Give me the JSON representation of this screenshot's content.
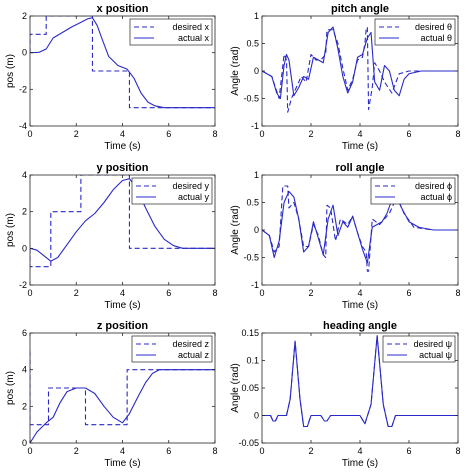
{
  "line_color": "#2929c8",
  "chart_data": [
    {
      "type": "line",
      "title": "x position",
      "xlabel": "Time (s)",
      "ylabel": "pos (m)",
      "xlim": [
        0,
        8
      ],
      "ylim": [
        -4,
        2
      ],
      "xticks": [
        0,
        2,
        4,
        6,
        8
      ],
      "xtick_labels": [
        "0",
        "2",
        "4",
        "6",
        "8"
      ],
      "yticks": [
        -4,
        -2,
        0,
        2
      ],
      "ytick_labels": [
        "-4",
        "-2",
        "0",
        "2"
      ],
      "legend": "top-right",
      "series": [
        {
          "name": "desired x",
          "style": "dashed",
          "x": [
            0,
            0,
            0.7,
            0.7,
            2.7,
            2.7,
            4.3,
            4.3,
            8
          ],
          "y": [
            0,
            1,
            1,
            2,
            2,
            -1,
            -1,
            -3,
            -3
          ]
        },
        {
          "name": "actual x",
          "style": "solid",
          "x": [
            0,
            0.4,
            0.7,
            1.0,
            1.4,
            1.8,
            2.2,
            2.5,
            2.7,
            2.9,
            3.1,
            3.4,
            3.8,
            4.2,
            4.5,
            4.8,
            5.1,
            5.4,
            5.8,
            6.2,
            7,
            8
          ],
          "y": [
            0,
            0.02,
            0.2,
            0.8,
            1.1,
            1.4,
            1.65,
            1.85,
            1.9,
            1.5,
            0.8,
            -0.2,
            -0.7,
            -0.9,
            -1.4,
            -2.2,
            -2.7,
            -2.9,
            -3.0,
            -3.0,
            -3.0,
            -3.0
          ]
        }
      ]
    },
    {
      "type": "line",
      "title": "pitch angle",
      "xlabel": "Time (s)",
      "ylabel": "Angle (rad)",
      "xlim": [
        0,
        8
      ],
      "ylim": [
        -1,
        1
      ],
      "xticks": [
        0,
        2,
        4,
        6,
        8
      ],
      "xtick_labels": [
        "0",
        "2",
        "4",
        "6",
        "8"
      ],
      "yticks": [
        -1,
        -0.5,
        0,
        0.5,
        1
      ],
      "ytick_labels": [
        "-1",
        "-0.5",
        "0",
        "0.5",
        "1"
      ],
      "legend": "top-right",
      "series": [
        {
          "name": "desired θ",
          "style": "dashed",
          "x": [
            0,
            0.4,
            0.55,
            0.7,
            0.75,
            0.9,
            1.0,
            1.05,
            1.2,
            1.4,
            1.6,
            1.8,
            2.0,
            2.2,
            2.4,
            2.6,
            2.65,
            2.7,
            2.9,
            3.1,
            3.3,
            3.5,
            3.7,
            3.9,
            4.1,
            4.2,
            4.25,
            4.3,
            4.35,
            4.5,
            4.6,
            4.8,
            5.0,
            5.3,
            5.6,
            6.0,
            7,
            8
          ],
          "y": [
            0,
            -0.1,
            -0.3,
            -0.5,
            -0.3,
            0.3,
            0.2,
            -0.75,
            -0.5,
            -0.3,
            -0.1,
            -0.2,
            0.3,
            0.2,
            0.2,
            0.3,
            0.75,
            0.75,
            0.75,
            0.5,
            0.05,
            -0.35,
            -0.15,
            0.2,
            0.25,
            0.5,
            0.75,
            0.8,
            -0.7,
            -0.3,
            0.15,
            0.0,
            -0.2,
            -0.4,
            -0.05,
            0.0,
            0.0,
            0.0
          ]
        },
        {
          "name": "actual θ",
          "style": "solid",
          "x": [
            0,
            0.4,
            0.6,
            0.75,
            0.9,
            1.0,
            1.1,
            1.3,
            1.5,
            1.7,
            1.9,
            2.1,
            2.3,
            2.5,
            2.7,
            2.9,
            3.1,
            3.3,
            3.5,
            3.7,
            3.9,
            4.1,
            4.3,
            4.45,
            4.6,
            4.8,
            5.0,
            5.2,
            5.4,
            5.6,
            5.8,
            6.0,
            6.5,
            7,
            8
          ],
          "y": [
            0,
            -0.1,
            -0.4,
            -0.5,
            0.1,
            0.3,
            0.2,
            -0.45,
            -0.3,
            -0.1,
            -0.15,
            0.25,
            0.2,
            0.15,
            0.7,
            0.8,
            0.4,
            -0.1,
            -0.4,
            -0.2,
            0.25,
            0.3,
            0.6,
            0.7,
            -0.2,
            -0.35,
            0.1,
            0.0,
            -0.35,
            -0.45,
            -0.15,
            -0.05,
            0.0,
            0.0,
            0.0
          ]
        }
      ]
    },
    {
      "type": "line",
      "title": "y position",
      "xlabel": "Time (s)",
      "ylabel": "pos (m)",
      "xlim": [
        0,
        8
      ],
      "ylim": [
        -2,
        4
      ],
      "xticks": [
        0,
        2,
        4,
        6,
        8
      ],
      "xtick_labels": [
        "0",
        "2",
        "4",
        "6",
        "8"
      ],
      "yticks": [
        -2,
        0,
        2,
        4
      ],
      "ytick_labels": [
        "-2",
        "0",
        "2",
        "4"
      ],
      "legend": "top-right",
      "series": [
        {
          "name": "desired y",
          "style": "dashed",
          "x": [
            0,
            0,
            0.9,
            0.9,
            2.2,
            2.2,
            4.3,
            4.3,
            8
          ],
          "y": [
            0,
            -1,
            -1,
            2,
            2,
            4,
            4,
            0,
            0
          ]
        },
        {
          "name": "actual y",
          "style": "solid",
          "x": [
            0,
            0.3,
            0.6,
            0.9,
            1.2,
            1.6,
            2.0,
            2.4,
            2.8,
            3.2,
            3.6,
            4.0,
            4.3,
            4.6,
            5.0,
            5.4,
            5.8,
            6.2,
            6.6,
            7,
            8
          ],
          "y": [
            0,
            -0.1,
            -0.4,
            -0.7,
            -0.5,
            0.2,
            0.9,
            1.5,
            1.9,
            2.5,
            3.2,
            3.7,
            3.8,
            3.3,
            2.2,
            1.2,
            0.5,
            0.15,
            0.0,
            0.0,
            0.0
          ]
        }
      ]
    },
    {
      "type": "line",
      "title": "roll angle",
      "xlabel": "Time (s)",
      "ylabel": "Angle (rad)",
      "xlim": [
        0,
        8
      ],
      "ylim": [
        -1,
        1
      ],
      "xticks": [
        0,
        2,
        4,
        6,
        8
      ],
      "xtick_labels": [
        "0",
        "2",
        "4",
        "6",
        "8"
      ],
      "yticks": [
        -1,
        -0.5,
        0,
        0.5,
        1
      ],
      "ytick_labels": [
        "-1",
        "-0.5",
        "0",
        "0.5",
        "1"
      ],
      "legend": "top-right",
      "series": [
        {
          "name": "desired ϕ",
          "style": "dashed",
          "x": [
            0,
            0.3,
            0.5,
            0.7,
            0.85,
            0.9,
            1.05,
            1.1,
            1.3,
            1.5,
            1.7,
            1.9,
            2.1,
            2.3,
            2.5,
            2.6,
            2.65,
            2.8,
            3.0,
            3.2,
            3.5,
            3.7,
            3.9,
            4.1,
            4.25,
            4.3,
            4.35,
            4.5,
            4.8,
            5.2,
            5.5,
            5.8,
            6.2,
            7,
            8
          ],
          "y": [
            0,
            -0.1,
            -0.4,
            -0.3,
            0.8,
            0.8,
            0.8,
            0.4,
            0.5,
            0.2,
            -0.3,
            -0.3,
            0.1,
            -0.1,
            -0.45,
            -0.5,
            0.45,
            0.4,
            -0.2,
            0.2,
            0.1,
            0.25,
            -0.05,
            -0.3,
            -0.4,
            -0.75,
            -0.75,
            0.2,
            0.1,
            0.3,
            0.6,
            0.3,
            0.05,
            0.0,
            0.0
          ]
        },
        {
          "name": "actual ϕ",
          "style": "solid",
          "x": [
            0,
            0.3,
            0.5,
            0.7,
            0.9,
            1.1,
            1.3,
            1.5,
            1.7,
            1.9,
            2.1,
            2.3,
            2.5,
            2.7,
            2.9,
            3.1,
            3.3,
            3.5,
            3.7,
            3.9,
            4.1,
            4.3,
            4.5,
            4.7,
            4.9,
            5.1,
            5.3,
            5.5,
            5.7,
            6.0,
            6.4,
            7,
            8
          ],
          "y": [
            0,
            -0.1,
            -0.5,
            -0.2,
            0.5,
            0.7,
            0.6,
            0.2,
            -0.4,
            -0.3,
            0.15,
            -0.15,
            -0.45,
            0.2,
            0.45,
            -0.1,
            0.15,
            0.05,
            0.25,
            -0.05,
            -0.35,
            -0.6,
            0.05,
            0.1,
            0.15,
            0.3,
            0.55,
            0.6,
            0.4,
            0.15,
            0.05,
            0.0,
            0.0
          ]
        }
      ]
    },
    {
      "type": "line",
      "title": "z position",
      "xlabel": "Time (s)",
      "ylabel": "pos (m)",
      "xlim": [
        0,
        8
      ],
      "ylim": [
        0,
        6
      ],
      "xticks": [
        0,
        2,
        4,
        6,
        8
      ],
      "xtick_labels": [
        "0",
        "2",
        "4",
        "6",
        "8"
      ],
      "yticks": [
        0,
        2,
        4,
        6
      ],
      "ytick_labels": [
        "0",
        "2",
        "4",
        "6"
      ],
      "legend": "top-right",
      "series": [
        {
          "name": "desired z",
          "style": "dashed",
          "x": [
            0,
            0,
            0.8,
            0.8,
            2.4,
            2.4,
            4.2,
            4.2,
            8
          ],
          "y": [
            5,
            1,
            1,
            3,
            3,
            1,
            1,
            4,
            4
          ]
        },
        {
          "name": "actual z",
          "style": "solid",
          "x": [
            0,
            0.3,
            0.7,
            1.0,
            1.3,
            1.6,
            2.0,
            2.4,
            2.8,
            3.2,
            3.6,
            4.0,
            4.3,
            4.7,
            5.0,
            5.3,
            5.6,
            6.0,
            7,
            8
          ],
          "y": [
            0,
            0.6,
            1.1,
            1.4,
            2.2,
            2.8,
            3.0,
            3.0,
            2.7,
            2.0,
            1.4,
            1.1,
            1.6,
            2.6,
            3.3,
            3.8,
            4.0,
            4.0,
            4.0,
            4.0
          ]
        }
      ]
    },
    {
      "type": "line",
      "title": "heading angle",
      "xlabel": "Time (s)",
      "ylabel": "Angle (rad)",
      "xlim": [
        0,
        8
      ],
      "ylim": [
        -0.05,
        0.15
      ],
      "xticks": [
        0,
        2,
        4,
        6,
        8
      ],
      "xtick_labels": [
        "0",
        "2",
        "4",
        "6",
        "8"
      ],
      "yticks": [
        -0.05,
        0,
        0.05,
        0.1,
        0.15
      ],
      "ytick_labels": [
        "-0.05",
        "0",
        "0.05",
        "0.1",
        "0.15"
      ],
      "legend": "top-right",
      "series": [
        {
          "name": "desired ψ",
          "style": "dashed",
          "x": [
            0,
            0.35,
            0.45,
            0.55,
            0.65,
            1.0,
            1.15,
            1.35,
            1.55,
            1.7,
            1.85,
            2.0,
            2.4,
            2.55,
            2.65,
            2.8,
            4.0,
            4.2,
            4.45,
            4.7,
            4.95,
            5.15,
            5.3,
            5.45,
            5.6,
            8
          ],
          "y": [
            0,
            0,
            -0.01,
            -0.01,
            0,
            0,
            0.03,
            0.135,
            0.03,
            -0.02,
            -0.02,
            0,
            0,
            -0.01,
            -0.01,
            0,
            0,
            -0.015,
            0.02,
            0.145,
            0.02,
            -0.02,
            -0.02,
            0,
            0,
            0
          ]
        },
        {
          "name": "actual ψ",
          "style": "solid",
          "x": [
            0,
            0.35,
            0.45,
            0.55,
            0.65,
            1.0,
            1.15,
            1.35,
            1.55,
            1.7,
            1.85,
            2.0,
            2.4,
            2.55,
            2.65,
            2.8,
            4.0,
            4.2,
            4.45,
            4.7,
            4.95,
            5.15,
            5.3,
            5.45,
            5.6,
            8
          ],
          "y": [
            0,
            0,
            -0.01,
            -0.01,
            0,
            0,
            0.03,
            0.135,
            0.03,
            -0.02,
            -0.02,
            0,
            0,
            -0.01,
            -0.01,
            0,
            0,
            -0.015,
            0.02,
            0.145,
            0.02,
            -0.02,
            -0.02,
            0,
            0,
            0
          ]
        }
      ]
    }
  ]
}
